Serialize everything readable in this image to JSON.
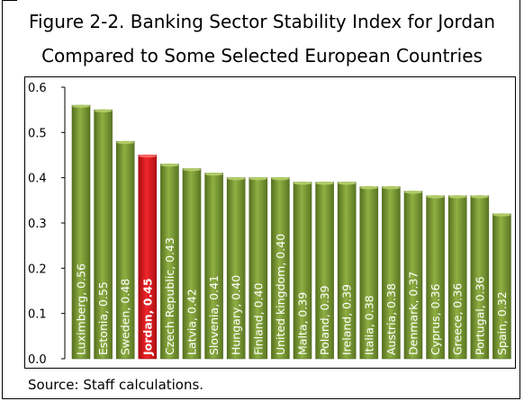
{
  "figure": {
    "title_line1": "Figure 2-2. Banking Sector Stability Index for Jordan",
    "title_line2": "Compared to Some Selected European Countries",
    "source": "Source: Staff calculations."
  },
  "colors": {
    "bar": "#7a9a34",
    "bar_dark": "#4f6a1e",
    "bar_highlight": "#e0151b",
    "bar_highlight_dark": "#9e0a0e"
  },
  "chart_data": {
    "type": "bar",
    "orientation": "vertical",
    "title": "Figure 2-2. Banking Sector Stability Index for Jordan Compared to Some Selected European Countries",
    "xlabel": "",
    "ylabel": "",
    "ylim": [
      0,
      0.6
    ],
    "yticks": [
      "0.0",
      "0.1",
      "0.2",
      "0.3",
      "0.4",
      "0.5",
      "0.6"
    ],
    "grid": false,
    "legend": "none",
    "highlight": "Jordan",
    "categories": [
      "Luximberg",
      "Estonia",
      "Sweden",
      "Jordan",
      "Czech Republic",
      "Latvia",
      "Slovenia",
      "Hungary",
      "Finland",
      "United kingdom",
      "Malta",
      "Poland",
      "Ireland",
      "Italia",
      "Austria",
      "Denmark",
      "Cyprus",
      "Greece",
      "Portugal",
      "Spain"
    ],
    "values": [
      0.56,
      0.55,
      0.48,
      0.45,
      0.43,
      0.42,
      0.41,
      0.4,
      0.4,
      0.4,
      0.39,
      0.39,
      0.39,
      0.38,
      0.38,
      0.37,
      0.36,
      0.36,
      0.36,
      0.32
    ],
    "bar_labels": [
      "Luximberg, 0.56",
      "Estonia, 0.55",
      "Sweden, 0.48",
      "Jordan, 0.45",
      "Czech Republic, 0.43",
      "Latvia, 0.42",
      "Slovenia, 0.41",
      "Hungary, 0.40",
      "Finland, 0.40",
      "United kingdom, 0.40",
      "Malta, 0.39",
      "Poland, 0.39",
      "Ireland, 0.39",
      "Italia, 0.38",
      "Austria, 0.38",
      "Denmark, 0.37",
      "Cyprus, 0.36",
      "Greece, 0.36",
      "Portugal, 0.36",
      "Spain, 0.32"
    ]
  }
}
